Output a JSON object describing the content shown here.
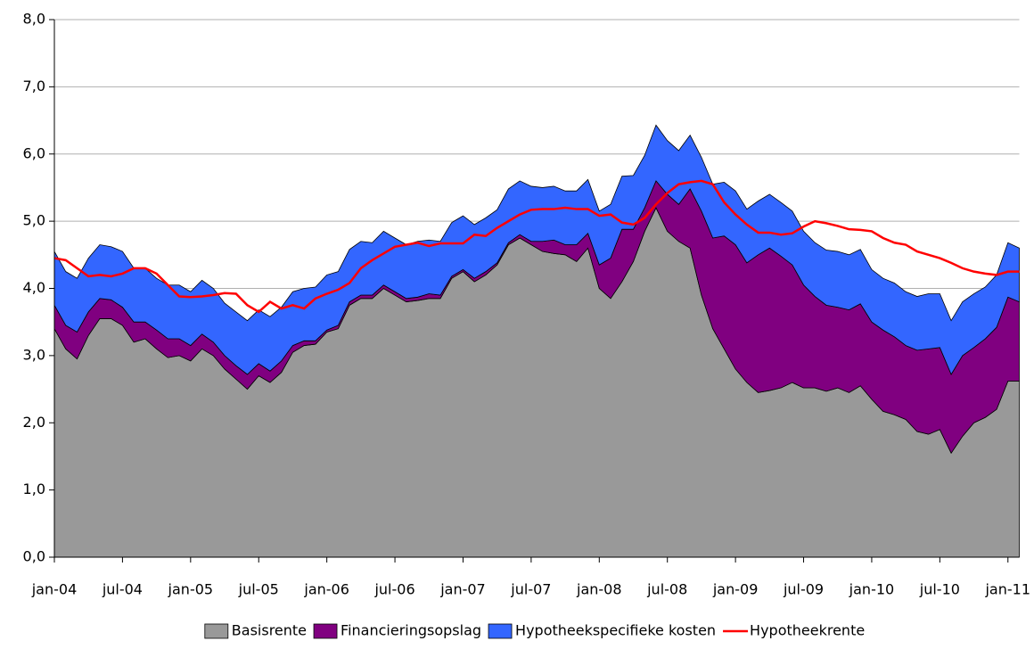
{
  "chart_data": {
    "type": "stacked-area-line",
    "categories": [
      "jan-04",
      null,
      null,
      null,
      null,
      null,
      "jul-04",
      null,
      null,
      null,
      null,
      null,
      "jan-05",
      null,
      null,
      null,
      null,
      null,
      "jul-05",
      null,
      null,
      null,
      null,
      null,
      "jan-06",
      null,
      null,
      null,
      null,
      null,
      "jul-06",
      null,
      null,
      null,
      null,
      null,
      "jan-07",
      null,
      null,
      null,
      null,
      null,
      "jul-07",
      null,
      null,
      null,
      null,
      null,
      "jan-08",
      null,
      null,
      null,
      null,
      null,
      "jul-08",
      null,
      null,
      null,
      null,
      null,
      "jan-09",
      null,
      null,
      null,
      null,
      null,
      "jul-09",
      null,
      null,
      null,
      null,
      null,
      "jan-10",
      null,
      null,
      null,
      null,
      null,
      "jul-10",
      null,
      null,
      null,
      null,
      null,
      "jan-11",
      null
    ],
    "series": [
      {
        "name": "Basisrente",
        "color": "#999999",
        "kind": "area",
        "values": [
          3.4,
          3.1,
          2.95,
          3.3,
          3.55,
          3.55,
          3.45,
          3.2,
          3.25,
          3.1,
          2.97,
          3.0,
          2.92,
          3.1,
          3.0,
          2.8,
          2.65,
          2.5,
          2.7,
          2.6,
          2.75,
          3.05,
          3.15,
          3.17,
          3.35,
          3.4,
          3.75,
          3.85,
          3.85,
          4.0,
          3.9,
          3.8,
          3.82,
          3.85,
          3.85,
          4.15,
          4.25,
          4.1,
          4.2,
          4.35,
          4.65,
          4.75,
          4.65,
          4.55,
          4.52,
          4.5,
          4.4,
          4.6,
          4.0,
          3.85,
          4.1,
          4.4,
          4.85,
          5.2,
          4.85,
          4.7,
          4.6,
          3.9,
          3.4,
          3.1,
          2.8,
          2.6,
          2.45,
          2.48,
          2.52,
          2.6,
          2.52,
          2.52,
          2.47,
          2.52,
          2.45,
          2.55,
          2.35,
          2.17,
          2.12,
          2.05,
          1.87,
          1.83,
          1.9,
          1.55,
          1.8,
          2.0,
          2.08,
          2.2,
          2.62,
          2.62
        ]
      },
      {
        "name": "Financieringsopslag",
        "color": "#800080",
        "kind": "area",
        "values": [
          0.35,
          0.35,
          0.4,
          0.35,
          0.3,
          0.28,
          0.27,
          0.3,
          0.25,
          0.28,
          0.28,
          0.25,
          0.23,
          0.22,
          0.2,
          0.2,
          0.2,
          0.22,
          0.18,
          0.17,
          0.17,
          0.1,
          0.07,
          0.05,
          0.03,
          0.05,
          0.05,
          0.05,
          0.05,
          0.05,
          0.05,
          0.05,
          0.05,
          0.07,
          0.05,
          0.03,
          0.03,
          0.05,
          0.05,
          0.03,
          0.03,
          0.05,
          0.05,
          0.15,
          0.2,
          0.15,
          0.25,
          0.22,
          0.35,
          0.6,
          0.78,
          0.48,
          0.35,
          0.4,
          0.55,
          0.55,
          0.88,
          1.25,
          1.35,
          1.68,
          1.85,
          1.78,
          2.05,
          2.12,
          1.96,
          1.75,
          1.53,
          1.36,
          1.28,
          1.2,
          1.23,
          1.22,
          1.15,
          1.21,
          1.16,
          1.1,
          1.21,
          1.27,
          1.22,
          1.17,
          1.2,
          1.12,
          1.17,
          1.22,
          1.25,
          1.18
        ]
      },
      {
        "name": "Hypotheekspecifieke kosten",
        "color": "#3366ff",
        "kind": "area",
        "values": [
          0.8,
          0.8,
          0.8,
          0.8,
          0.8,
          0.79,
          0.83,
          0.8,
          0.8,
          0.77,
          0.8,
          0.8,
          0.8,
          0.8,
          0.8,
          0.78,
          0.8,
          0.8,
          0.8,
          0.81,
          0.8,
          0.8,
          0.78,
          0.8,
          0.82,
          0.8,
          0.78,
          0.8,
          0.78,
          0.8,
          0.8,
          0.8,
          0.83,
          0.8,
          0.8,
          0.8,
          0.8,
          0.8,
          0.8,
          0.79,
          0.8,
          0.8,
          0.82,
          0.8,
          0.8,
          0.8,
          0.8,
          0.8,
          0.8,
          0.8,
          0.79,
          0.8,
          0.78,
          0.83,
          0.8,
          0.8,
          0.8,
          0.8,
          0.8,
          0.8,
          0.8,
          0.8,
          0.8,
          0.8,
          0.8,
          0.8,
          0.8,
          0.8,
          0.82,
          0.83,
          0.82,
          0.81,
          0.78,
          0.77,
          0.8,
          0.8,
          0.8,
          0.82,
          0.8,
          0.8,
          0.8,
          0.8,
          0.77,
          0.78,
          0.81,
          0.8
        ]
      },
      {
        "name": "Hypotheekrente",
        "color": "#ff0000",
        "kind": "line",
        "values": [
          4.45,
          4.42,
          4.3,
          4.18,
          4.2,
          4.18,
          4.22,
          4.3,
          4.3,
          4.22,
          4.05,
          3.88,
          3.87,
          3.88,
          3.9,
          3.93,
          3.92,
          3.75,
          3.65,
          3.8,
          3.7,
          3.75,
          3.7,
          3.85,
          3.92,
          3.98,
          4.08,
          4.3,
          4.42,
          4.52,
          4.62,
          4.65,
          4.68,
          4.63,
          4.67,
          4.67,
          4.67,
          4.8,
          4.78,
          4.9,
          5.0,
          5.1,
          5.17,
          5.18,
          5.18,
          5.2,
          5.18,
          5.18,
          5.08,
          5.1,
          4.98,
          4.95,
          5.05,
          5.25,
          5.42,
          5.55,
          5.58,
          5.6,
          5.55,
          5.28,
          5.1,
          4.95,
          4.83,
          4.83,
          4.8,
          4.82,
          4.92,
          5.0,
          4.97,
          4.93,
          4.88,
          4.87,
          4.85,
          4.75,
          4.68,
          4.65,
          4.55,
          4.5,
          4.45,
          4.38,
          4.3,
          4.25,
          4.22,
          4.2,
          4.25,
          4.25
        ]
      }
    ],
    "ylim": [
      0,
      8
    ],
    "yticks": [
      {
        "value": 0,
        "label": "0,0"
      },
      {
        "value": 1,
        "label": "1,0"
      },
      {
        "value": 2,
        "label": "2,0"
      },
      {
        "value": 3,
        "label": "3,0"
      },
      {
        "value": 4,
        "label": "4,0"
      },
      {
        "value": 5,
        "label": "5,0"
      },
      {
        "value": 6,
        "label": "6,0"
      },
      {
        "value": 7,
        "label": "7,0"
      },
      {
        "value": 8,
        "label": "8,0"
      }
    ],
    "grid": true,
    "legend": "bottom"
  }
}
